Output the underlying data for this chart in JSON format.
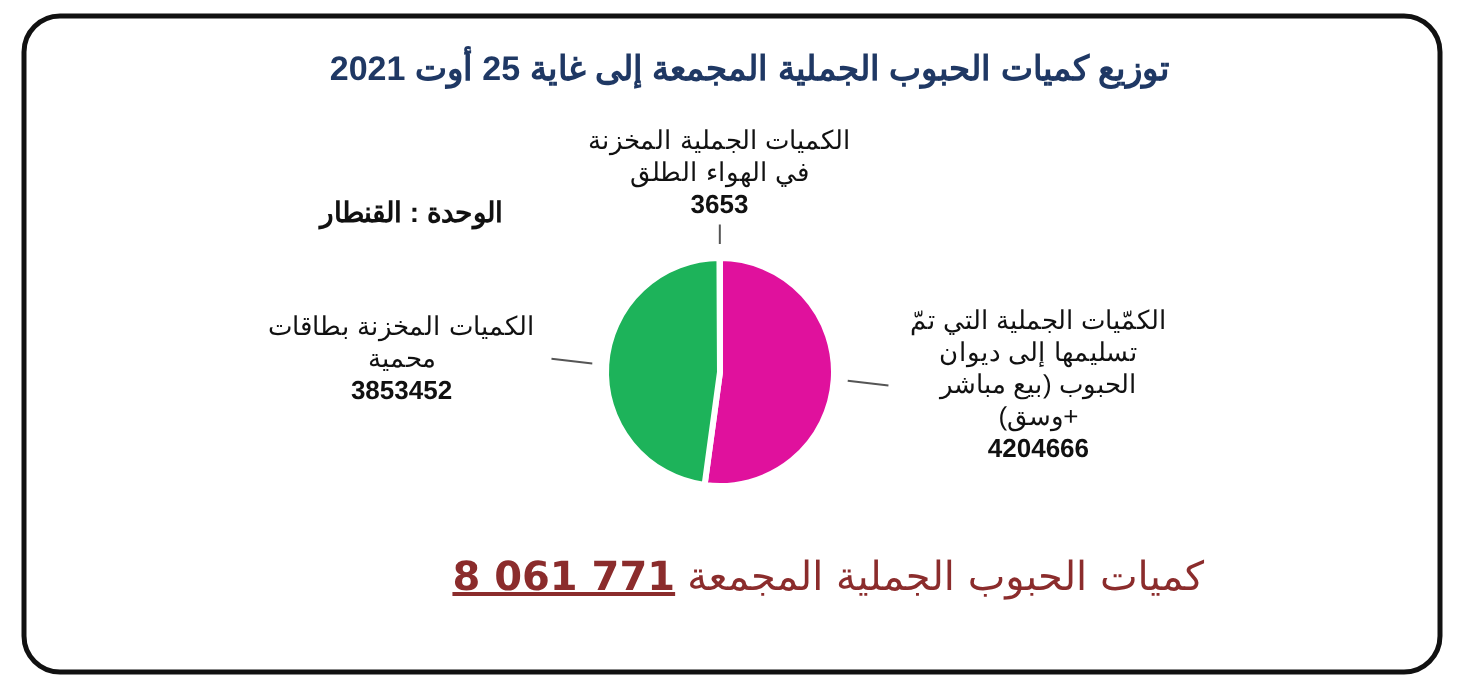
{
  "chart_data": {
    "type": "pie",
    "title": "توزيع كميات الحبوب الجملية  المجمعة إلى غاية 25 أوت 2021",
    "categories": [
      "الكمّيات الجملية التي تمّ تسليمها إلى ديوان الحبوب (بيع مباشر +وسق)",
      "الكميات المخزنة بطاقات محمية",
      "الكميات الجملية المخزنة في الهواء الطلق"
    ],
    "values": [
      4204666,
      3853452,
      3653
    ],
    "colors": [
      "#e0119d",
      "#1db35a",
      "#b0b0b0"
    ],
    "data_labels": true,
    "annotations": [
      "الوحدة : القنطار",
      "كميات الحبوب الجملية المجمعة 8 061 771"
    ]
  }
}
